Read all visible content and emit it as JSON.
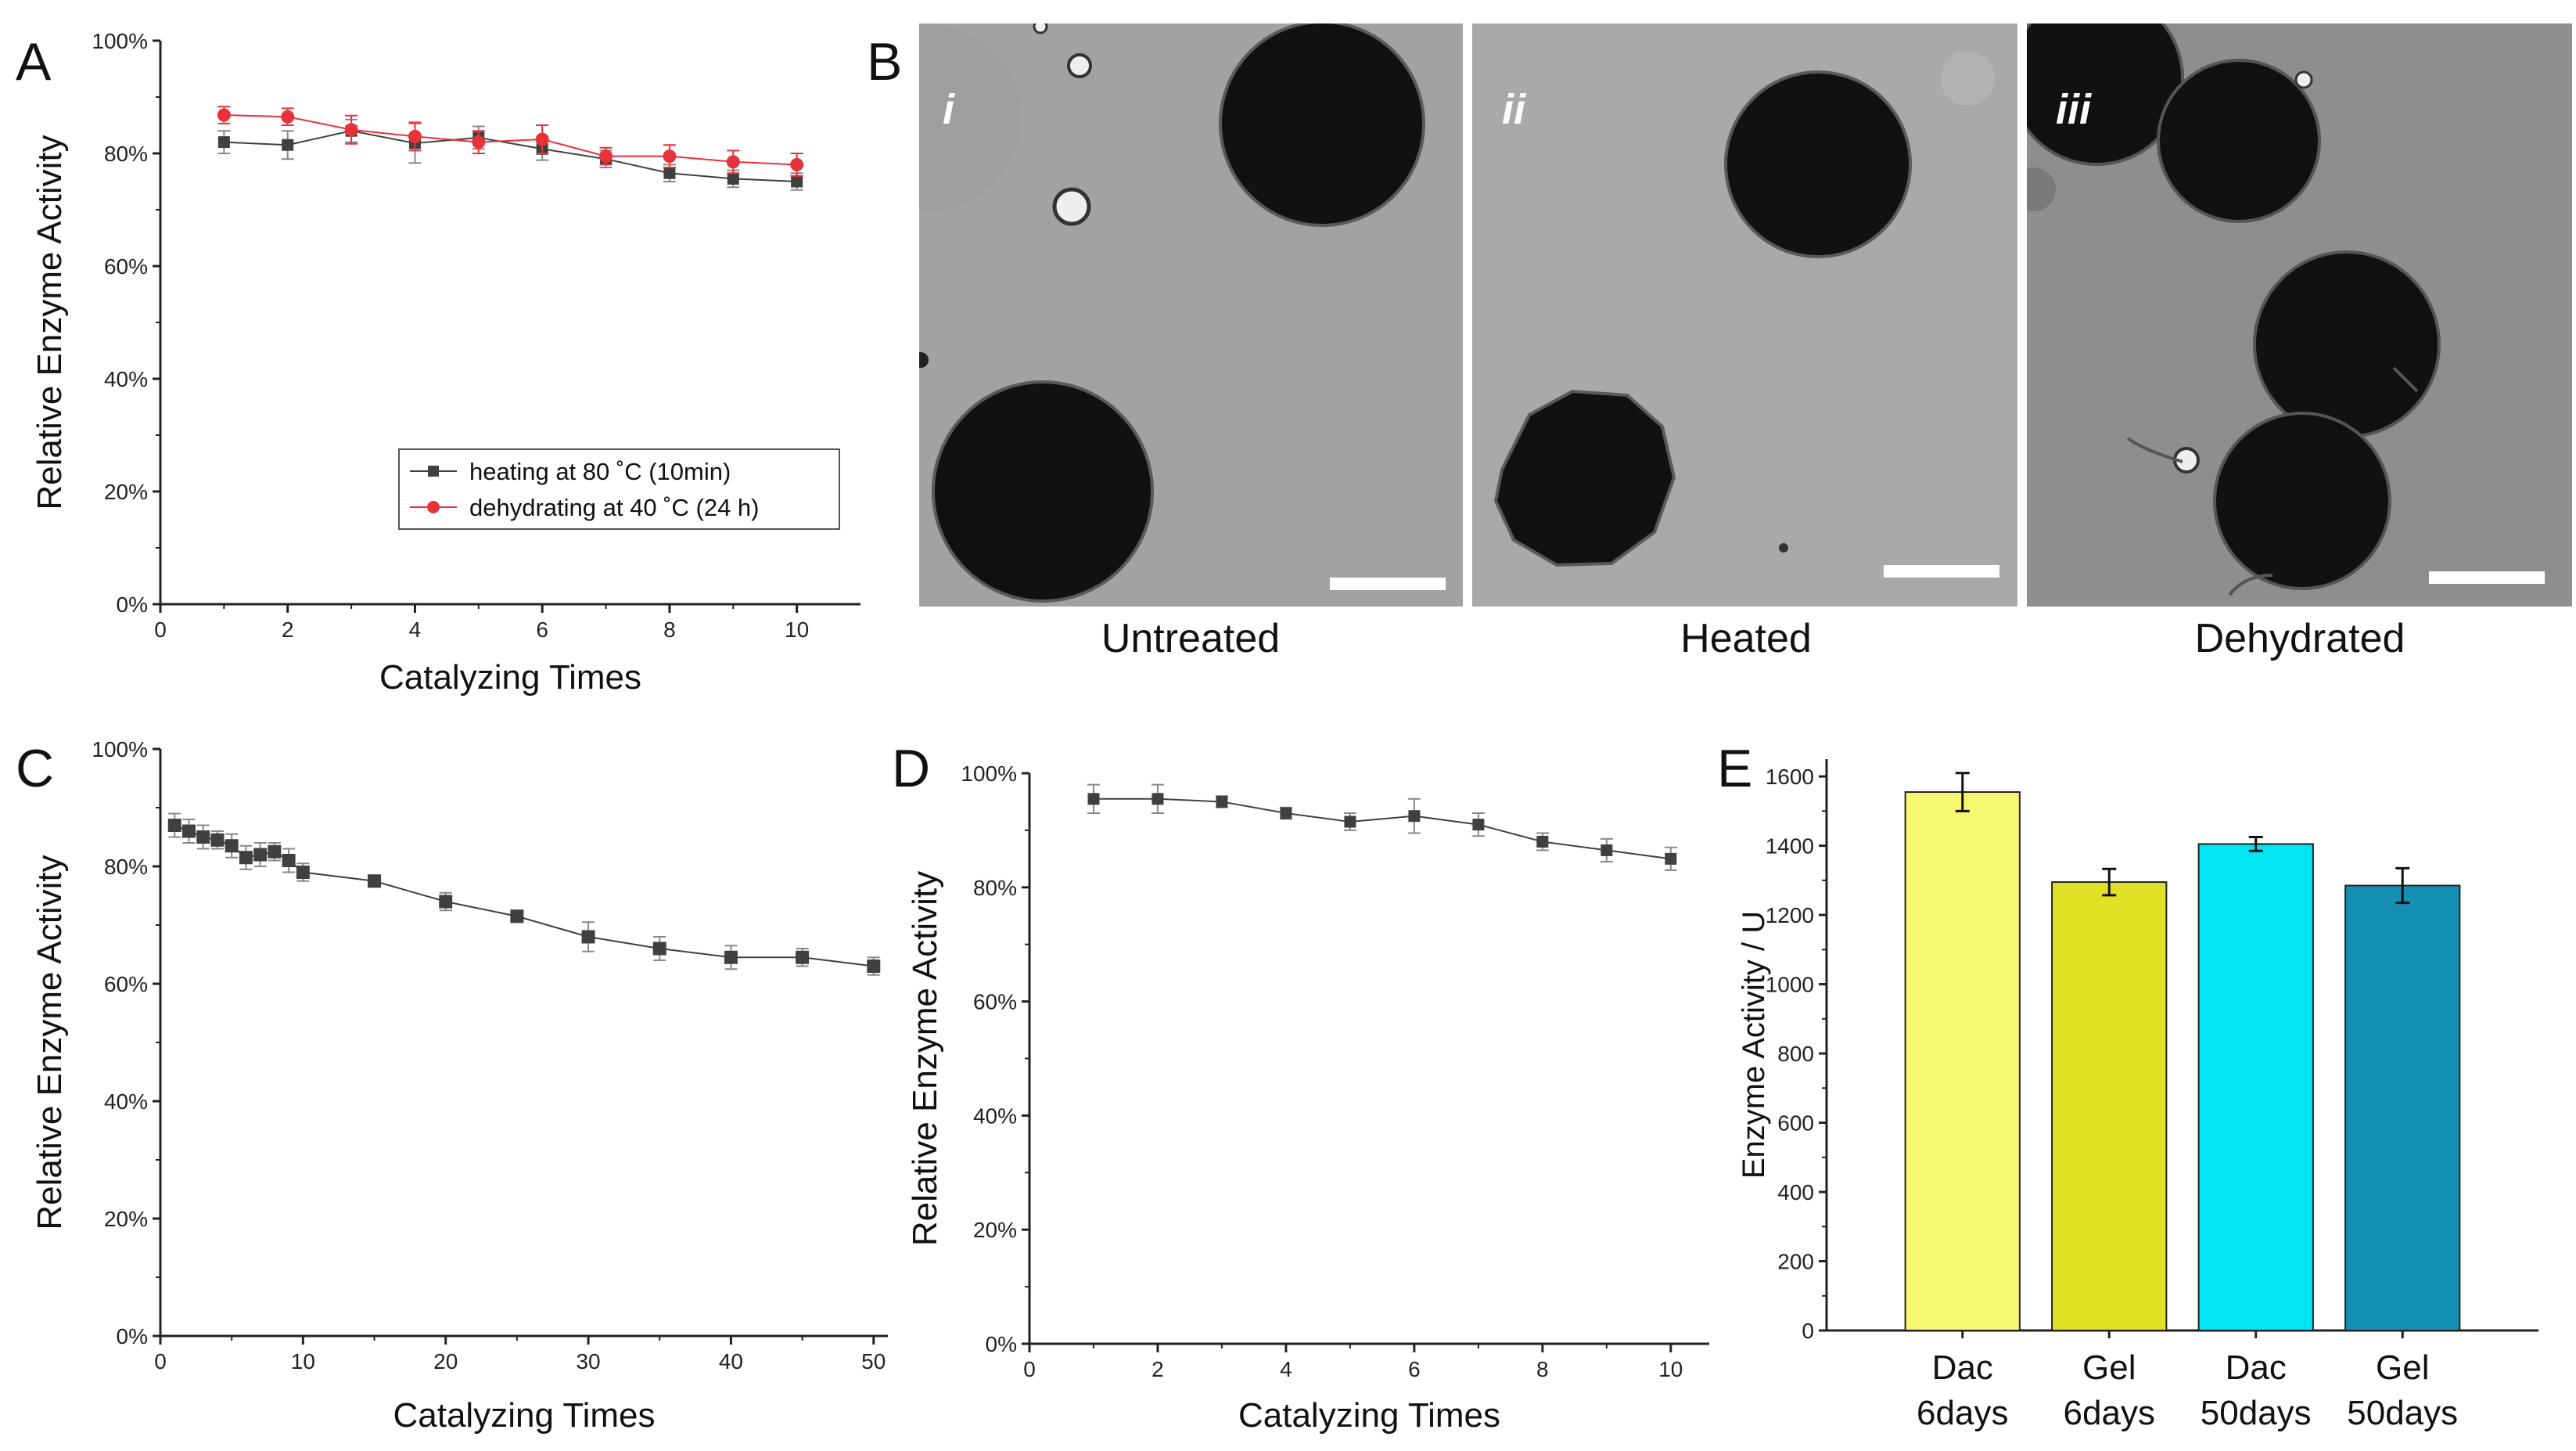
{
  "panel_labels": {
    "A": "A",
    "B": "B",
    "C": "C",
    "D": "D",
    "E": "E"
  },
  "colors": {
    "series_heating": "#404040",
    "series_dehydrating": "#e8323a",
    "bar_dac6": "#f8f870",
    "bar_gel6": "#e0e024",
    "bar_dac50": "#00e6f4",
    "bar_gel50": "#1590b4",
    "micrograph_bg": "#a2a2a2",
    "bead": "#111111"
  },
  "micrographs": [
    {
      "roman": "i",
      "caption": "Untreated",
      "beads": [
        {
          "diameter_um": null
        }
      ],
      "note": "bead"
    },
    {
      "roman": "ii",
      "caption": "Heated"
    },
    {
      "roman": "iii",
      "caption": "Dehydrated"
    }
  ],
  "chart_data": [
    {
      "panel": "A",
      "type": "line",
      "title": "",
      "xlabel": "Catalyzing Times",
      "ylabel": "Relative Enzyme Activity",
      "xlim": [
        0,
        11
      ],
      "ylim": [
        0,
        100
      ],
      "xticks": [
        0,
        2,
        4,
        6,
        8,
        10
      ],
      "yticks": [
        0,
        20,
        40,
        60,
        80,
        100
      ],
      "ytick_labels": [
        "0%",
        "20%",
        "40%",
        "60%",
        "80%",
        "100%"
      ],
      "legend": "inside-lower-right",
      "series": [
        {
          "name": "heating at 80 ˚C (10min)",
          "marker": "square",
          "color": "#404040",
          "x": [
            1,
            2,
            3,
            4,
            5,
            6,
            7,
            8,
            9,
            10
          ],
          "y": [
            82.0,
            81.5,
            84.0,
            81.8,
            82.8,
            80.8,
            79.0,
            76.5,
            75.5,
            75.0
          ],
          "err": [
            2.0,
            2.5,
            2.0,
            3.5,
            2.0,
            2.0,
            1.5,
            1.5,
            1.5,
            1.5
          ]
        },
        {
          "name": "dehydrating at 40 ˚C (24 h)",
          "marker": "circle",
          "color": "#e8323a",
          "x": [
            1,
            2,
            3,
            4,
            5,
            6,
            7,
            8,
            9,
            10
          ],
          "y": [
            86.8,
            86.5,
            84.2,
            83.0,
            82.0,
            82.5,
            79.5,
            79.5,
            78.5,
            78.0
          ],
          "err": [
            1.5,
            1.5,
            2.5,
            2.5,
            2.0,
            2.5,
            1.5,
            2.0,
            2.0,
            2.0
          ]
        }
      ]
    },
    {
      "panel": "C",
      "type": "line",
      "title": "",
      "xlabel": "Catalyzing Times",
      "ylabel": "Relative Enzyme Activity",
      "xlim": [
        0,
        51
      ],
      "ylim": [
        0,
        100
      ],
      "xticks": [
        0,
        10,
        20,
        30,
        40,
        50
      ],
      "yticks": [
        0,
        20,
        40,
        60,
        80,
        100
      ],
      "ytick_labels": [
        "0%",
        "20%",
        "40%",
        "60%",
        "80%",
        "100%"
      ],
      "series": [
        {
          "name": "",
          "marker": "square",
          "color": "#404040",
          "x": [
            1,
            2,
            3,
            4,
            5,
            6,
            7,
            8,
            9,
            10,
            15,
            20,
            25,
            30,
            35,
            40,
            45,
            50
          ],
          "y": [
            87.0,
            86.0,
            85.0,
            84.5,
            83.5,
            81.5,
            82.0,
            82.5,
            81.0,
            79.0,
            77.5,
            74.0,
            71.5,
            68.0,
            66.0,
            64.5,
            64.5,
            63.0
          ],
          "err": [
            2.0,
            2.0,
            2.0,
            1.5,
            2.0,
            2.0,
            2.0,
            1.5,
            2.0,
            1.5,
            1.0,
            1.5,
            1.0,
            2.5,
            2.0,
            2.0,
            1.5,
            1.5
          ]
        }
      ]
    },
    {
      "panel": "D",
      "type": "line",
      "title": "",
      "xlabel": "Catalyzing Times",
      "ylabel": "Relative Enzyme Activity",
      "xlim": [
        0,
        10.6
      ],
      "ylim": [
        0,
        100
      ],
      "xticks": [
        0,
        2,
        4,
        6,
        8,
        10
      ],
      "yticks": [
        0,
        20,
        40,
        60,
        80,
        100
      ],
      "ytick_labels": [
        "0%",
        "20%",
        "40%",
        "60%",
        "80%",
        "100%"
      ],
      "series": [
        {
          "name": "",
          "marker": "square",
          "color": "#404040",
          "x": [
            1,
            2,
            3,
            4,
            5,
            6,
            7,
            8,
            9,
            10
          ],
          "y": [
            95.5,
            95.5,
            95.0,
            93.0,
            91.5,
            92.5,
            91.0,
            88.0,
            86.5,
            85.0
          ],
          "err": [
            2.5,
            2.5,
            1.0,
            1.0,
            1.5,
            3.0,
            2.0,
            1.5,
            2.0,
            2.0
          ]
        }
      ]
    },
    {
      "panel": "E",
      "type": "bar",
      "title": "",
      "xlabel": "",
      "ylabel": "Enzyme Activity / U",
      "ylim": [
        0,
        1650
      ],
      "yticks": [
        0,
        200,
        400,
        600,
        800,
        1000,
        1200,
        1400,
        1600
      ],
      "categories": [
        "Dac\n6days",
        "Gel\n6days",
        "Dac\n50days",
        "Gel\n50days"
      ],
      "category_lines": [
        [
          "Dac",
          "6days"
        ],
        [
          "Gel",
          "6days"
        ],
        [
          "Dac",
          "50days"
        ],
        [
          "Gel",
          "50days"
        ]
      ],
      "values": [
        1555,
        1295,
        1405,
        1285
      ],
      "err": [
        55,
        38,
        20,
        50
      ],
      "bar_colors": [
        "#f8f870",
        "#e0e024",
        "#00e6f4",
        "#1590b4"
      ]
    }
  ]
}
